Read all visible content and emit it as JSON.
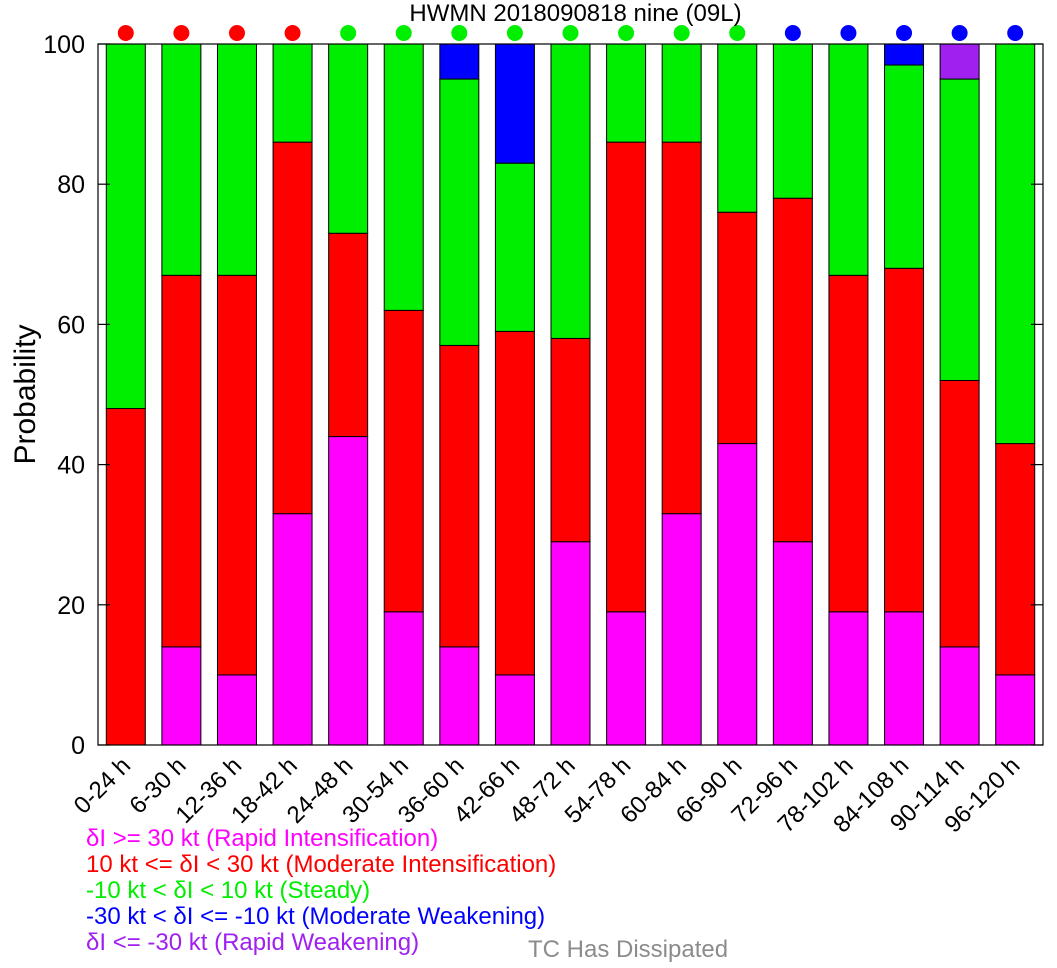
{
  "chart_data": {
    "type": "bar",
    "stacked": true,
    "title": "HWMN 2018090818 nine (09L)",
    "ylabel": "Probability",
    "ylim": [
      0,
      100
    ],
    "yticks": [
      0,
      20,
      40,
      60,
      80,
      100
    ],
    "categories": [
      "0-24 h",
      "6-30 h",
      "12-36 h",
      "18-42 h",
      "24-48 h",
      "30-54 h",
      "36-60 h",
      "42-66 h",
      "48-72 h",
      "54-78 h",
      "60-84 h",
      "66-90 h",
      "72-96 h",
      "78-102 h",
      "84-108 h",
      "90-114 h",
      "96-120 h"
    ],
    "series": [
      {
        "name": "δI >= 30 kt (Rapid Intensification)",
        "color": "#ff00ff",
        "values": [
          0,
          14,
          10,
          33,
          44,
          19,
          14,
          10,
          29,
          19,
          33,
          43,
          29,
          19,
          19,
          14,
          10
        ]
      },
      {
        "name": "10 kt <= δI < 30 kt (Moderate Intensification)",
        "color": "#ff0000",
        "values": [
          48,
          53,
          57,
          53,
          29,
          43,
          43,
          49,
          29,
          67,
          53,
          33,
          49,
          48,
          49,
          38,
          33
        ]
      },
      {
        "name": "-10 kt < δI < 10 kt (Steady)",
        "color": "#00ee00",
        "values": [
          52,
          33,
          33,
          14,
          27,
          38,
          38,
          24,
          42,
          14,
          14,
          24,
          22,
          33,
          29,
          43,
          57
        ]
      },
      {
        "name": "-30 kt < δI <= -10 kt (Moderate Weakening)",
        "color": "#0000ff",
        "values": [
          0,
          0,
          0,
          0,
          0,
          0,
          5,
          17,
          0,
          0,
          0,
          0,
          0,
          0,
          3,
          0,
          0
        ]
      },
      {
        "name": "δI <= -30 kt (Rapid Weakening)",
        "color": "#a020f0",
        "values": [
          0,
          0,
          0,
          0,
          0,
          0,
          0,
          0,
          0,
          0,
          0,
          0,
          0,
          0,
          0,
          5,
          0
        ]
      }
    ],
    "category_markers": [
      "#ff0000",
      "#ff0000",
      "#ff0000",
      "#ff0000",
      "#00ee00",
      "#00ee00",
      "#00ee00",
      "#00ee00",
      "#00ee00",
      "#00ee00",
      "#00ee00",
      "#00ee00",
      "#0000ff",
      "#0000ff",
      "#0000ff",
      "#0000ff",
      "#0000ff"
    ],
    "extra_legend": {
      "label": "TC Has Dissipated",
      "color": "#8c8c8c"
    }
  }
}
